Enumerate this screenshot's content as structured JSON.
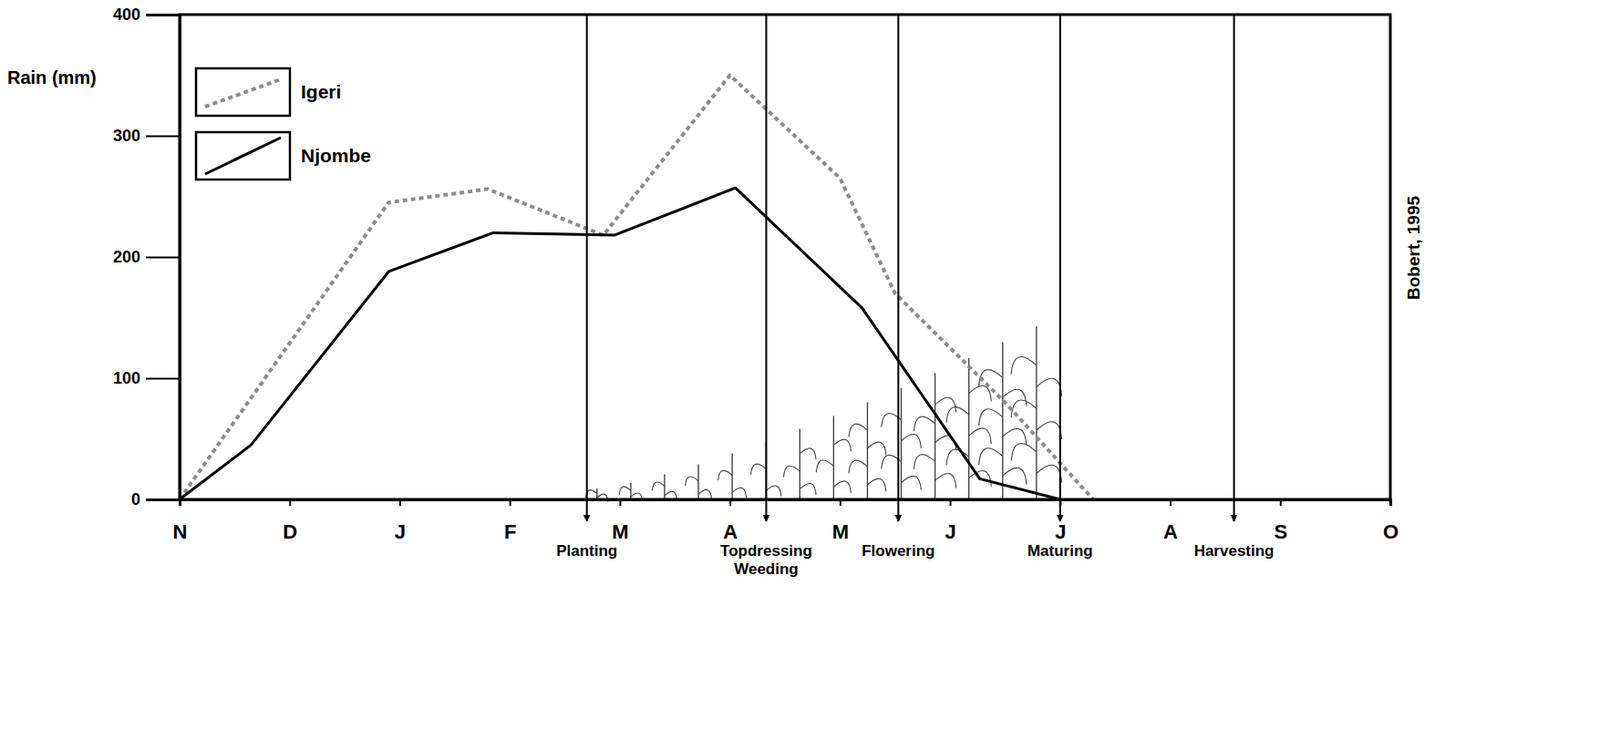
{
  "chart_data": {
    "type": "line",
    "y_label": "Rain (mm)",
    "source": "Bobert, 1995",
    "xlim": [
      0,
      11
    ],
    "xticks": [
      {
        "value": 0,
        "label": "N"
      },
      {
        "value": 1,
        "label": "D"
      },
      {
        "value": 2,
        "label": "J"
      },
      {
        "value": 3,
        "label": "F"
      },
      {
        "value": 4,
        "label": "M"
      },
      {
        "value": 5,
        "label": "A"
      },
      {
        "value": 6,
        "label": "M"
      },
      {
        "value": 7,
        "label": "J"
      },
      {
        "value": 8,
        "label": "J"
      },
      {
        "value": 9,
        "label": "A"
      },
      {
        "value": 10,
        "label": "S"
      },
      {
        "value": 11,
        "label": "O"
      }
    ],
    "ylim": [
      0,
      400
    ],
    "yticks": [
      0,
      100,
      200,
      300,
      400
    ],
    "grid": false,
    "legend": "top-left",
    "series": [
      {
        "name": "Igeri",
        "color": "#8c8c8c",
        "line_style": "dashed",
        "x": [
          0,
          1.9,
          2.8,
          3.85,
          5.0,
          6.0,
          6.5,
          7.5,
          8.3
        ],
        "values": [
          0,
          245,
          256,
          218,
          350,
          265,
          170,
          80,
          0
        ]
      },
      {
        "name": "Njombe",
        "color": "#000000",
        "line_style": "solid",
        "x": [
          0,
          0.65,
          1.9,
          2.85,
          3.95,
          5.05,
          6.2,
          7.27,
          8.0
        ],
        "values": [
          0,
          45,
          188,
          220,
          218,
          257,
          158,
          17,
          0
        ]
      }
    ],
    "annotations": [
      {
        "x": 3.7,
        "label": [
          "Planting"
        ]
      },
      {
        "x": 5.33,
        "label": [
          "Topdressing",
          "Weeding"
        ]
      },
      {
        "x": 6.53,
        "label": [
          "Flowering"
        ]
      },
      {
        "x": 8.0,
        "label": [
          "Maturing"
        ]
      },
      {
        "x": 9.58,
        "label": [
          "Harvesting"
        ]
      }
    ]
  }
}
